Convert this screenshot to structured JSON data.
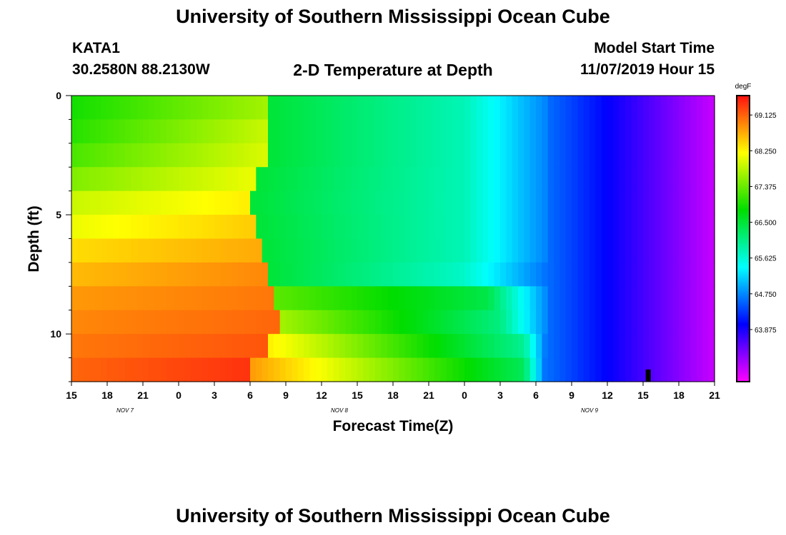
{
  "header": {
    "title": "University of Southern Mississippi Ocean Cube",
    "footer_title": "University of Southern Mississippi Ocean Cube",
    "station": "KATA1",
    "location": "30.2580N 88.2130W",
    "subtitle": "2-D Temperature at Depth",
    "model_start_label": "Model Start Time",
    "model_start_value": "11/07/2019 Hour 15"
  },
  "chart_data": {
    "type": "heatmap",
    "title": "2-D Temperature at Depth",
    "xlabel": "Forecast Time(Z)",
    "ylabel": "Depth (ft)",
    "x_tick_labels": [
      "15",
      "18",
      "21",
      "0",
      "3",
      "6",
      "9",
      "12",
      "15",
      "18",
      "21",
      "0",
      "3",
      "6",
      "9",
      "12",
      "15",
      "18",
      "21"
    ],
    "date_labels": [
      {
        "label": "NOV 7",
        "after_tick": 1
      },
      {
        "label": "NOV 8",
        "after_tick": 7
      },
      {
        "label": "NOV 9",
        "after_tick": 14
      }
    ],
    "x_range_hours": [
      0,
      54
    ],
    "y_ticks": [
      "0",
      "5",
      "10"
    ],
    "y_range_ft": [
      0,
      12
    ],
    "y_inverted": true,
    "colorbar": {
      "unit": "degF",
      "range": [
        62.6,
        69.6
      ],
      "tick_labels": [
        "69.125",
        "68.250",
        "67.375",
        "66.500",
        "65.625",
        "64.750",
        "63.875"
      ],
      "colors": [
        "#ff1010",
        "#ffff00",
        "#00dd00",
        "#00ffff",
        "#0000ff",
        "#ff00ff"
      ]
    },
    "depth_layers_ft": [
      0.5,
      1.5,
      2.5,
      3.5,
      4.5,
      5.5,
      6.5,
      7.5,
      8.5,
      9.5,
      10.5,
      11.5
    ],
    "transition_rows": [
      {
        "warm_start_degF": 66.9,
        "warm_peak_degF": 67.7,
        "warm_end_hour": 16.5,
        "mid_start_degF": 66.5,
        "mid_end_degF": 65.8,
        "mid_end_hour": 33.0,
        "cold_start_degF": 65.6,
        "cold_end_hour": 40.0
      },
      {
        "warm_start_degF": 67.0,
        "warm_peak_degF": 67.9,
        "warm_end_hour": 16.5,
        "mid_start_degF": 66.5,
        "mid_end_degF": 65.8,
        "mid_end_hour": 33.0,
        "cold_start_degF": 65.6,
        "cold_end_hour": 40.0
      },
      {
        "warm_start_degF": 67.2,
        "warm_peak_degF": 68.0,
        "warm_end_hour": 16.5,
        "mid_start_degF": 66.5,
        "mid_end_degF": 65.8,
        "mid_end_hour": 33.0,
        "cold_start_degF": 65.6,
        "cold_end_hour": 40.0
      },
      {
        "warm_start_degF": 67.5,
        "warm_peak_degF": 68.1,
        "warm_end_hour": 15.5,
        "mid_start_degF": 66.5,
        "mid_end_degF": 65.8,
        "mid_end_hour": 33.0,
        "cold_start_degF": 65.6,
        "cold_end_hour": 40.0
      },
      {
        "warm_start_degF": 67.9,
        "warm_peak_degF": 68.3,
        "warm_end_hour": 15.0,
        "mid_start_degF": 66.5,
        "mid_end_degF": 65.8,
        "mid_end_hour": 33.0,
        "cold_start_degF": 65.6,
        "cold_end_hour": 40.0
      },
      {
        "warm_start_degF": 68.1,
        "warm_peak_degF": 68.5,
        "warm_end_hour": 15.5,
        "mid_start_degF": 66.5,
        "mid_end_degF": 65.8,
        "mid_end_hour": 33.0,
        "cold_start_degF": 65.6,
        "cold_end_hour": 40.0
      },
      {
        "warm_start_degF": 68.4,
        "warm_peak_degF": 68.7,
        "warm_end_hour": 16.0,
        "mid_start_degF": 66.5,
        "mid_end_degF": 65.8,
        "mid_end_hour": 33.0,
        "cold_start_degF": 65.6,
        "cold_end_hour": 40.0
      },
      {
        "warm_start_degF": 68.6,
        "warm_peak_degF": 68.9,
        "warm_end_hour": 16.5,
        "mid_start_degF": 66.5,
        "mid_end_degF": 65.7,
        "mid_end_hour": 33.0,
        "cold_start_degF": 65.5,
        "cold_end_hour": 40.0
      },
      {
        "warm_start_degF": 68.8,
        "warm_peak_degF": 69.0,
        "warm_end_hour": 17.0,
        "mid_start_degF": 67.3,
        "mid_end_degF": 66.4,
        "mid_end_hour": 35.0,
        "cold_start_degF": 65.6,
        "cold_end_hour": 40.0
      },
      {
        "warm_start_degF": 68.9,
        "warm_peak_degF": 69.1,
        "warm_end_hour": 17.5,
        "mid_start_degF": 67.7,
        "mid_end_degF": 66.1,
        "mid_end_hour": 36.0,
        "cold_start_degF": 65.6,
        "cold_end_hour": 40.0
      },
      {
        "warm_start_degF": 69.0,
        "warm_peak_degF": 69.2,
        "warm_end_hour": 16.5,
        "mid_start_degF": 68.3,
        "mid_end_degF": 66.0,
        "mid_end_hour": 38.0,
        "cold_start_degF": 65.4,
        "cold_end_hour": 40.0
      },
      {
        "warm_start_degF": 69.1,
        "warm_peak_degF": 69.4,
        "warm_end_hour": 15.0,
        "mid_start_degF": 68.8,
        "mid_end_degF": 66.3,
        "mid_end_hour": 38.0,
        "cold_start_degF": 65.3,
        "cold_end_hour": 40.0
      }
    ],
    "tail_end_degF": 63.2,
    "final_degF": 62.9,
    "marker_hour": 48.4
  }
}
